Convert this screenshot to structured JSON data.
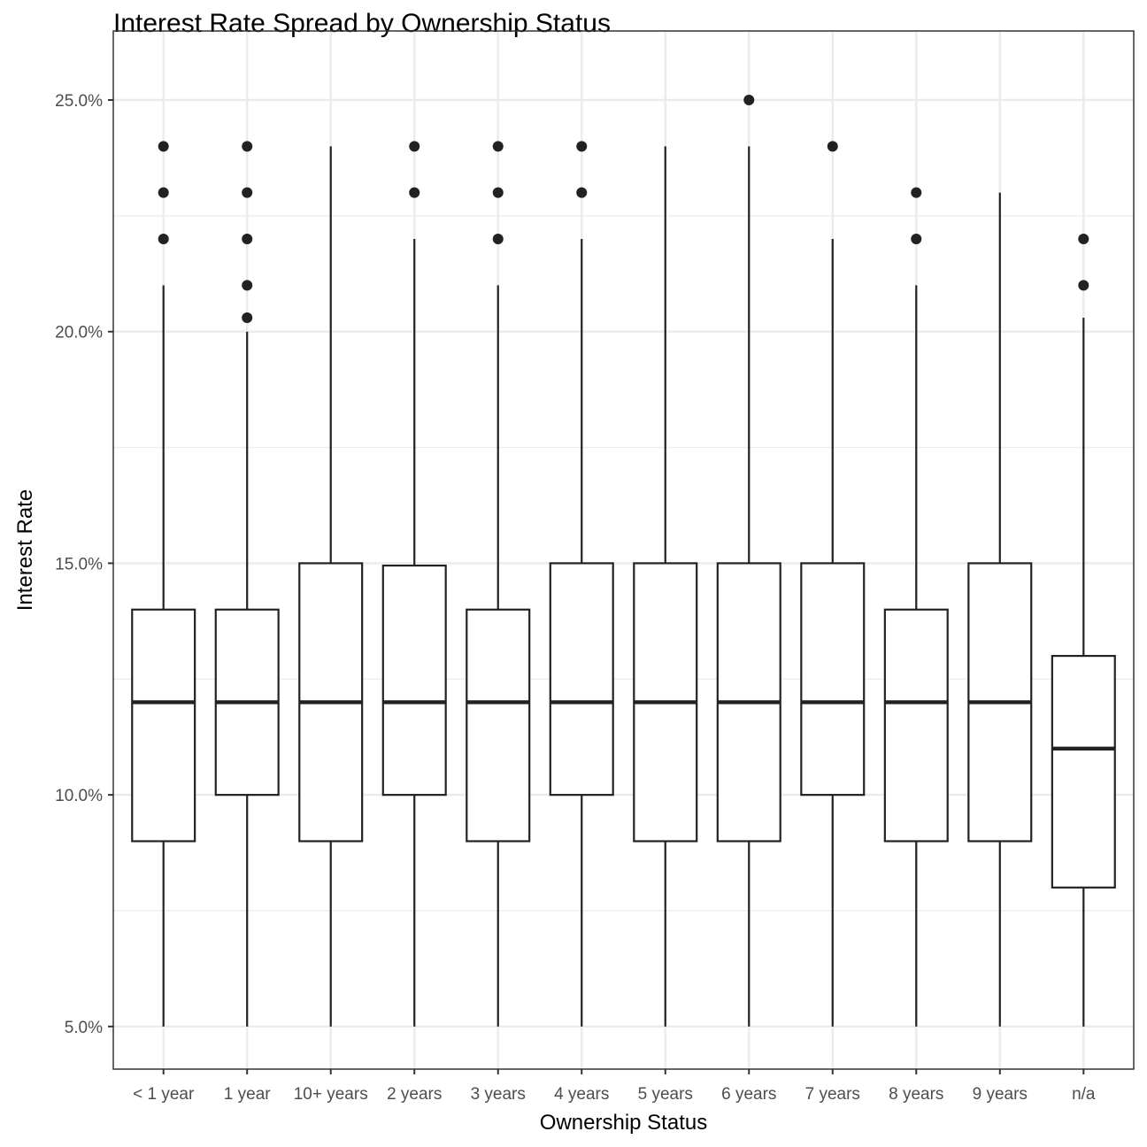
{
  "chart_data": {
    "type": "boxplot",
    "title": "Interest Rate Spread by Ownership Status",
    "xlabel": "Ownership Status",
    "ylabel": "Interest Rate",
    "ylim": [
      4.08,
      26.49
    ],
    "yticks": [
      5,
      10,
      15,
      20,
      25
    ],
    "ytick_labels": [
      "5.0%",
      "10.0%",
      "15.0%",
      "20.0%",
      "25.0%"
    ],
    "grid": true,
    "categories": [
      "< 1 year",
      "1 year",
      "10+ years",
      "2 years",
      "3 years",
      "4 years",
      "5 years",
      "6 years",
      "7 years",
      "8 years",
      "9 years",
      "n/a"
    ],
    "boxes": [
      {
        "min": 5,
        "q1": 9,
        "median": 12,
        "q3": 14,
        "max": 21,
        "outliers": [
          22,
          23,
          24
        ]
      },
      {
        "min": 5,
        "q1": 10,
        "median": 12,
        "q3": 14,
        "max": 20,
        "outliers": [
          20.3,
          21,
          22,
          23,
          24
        ]
      },
      {
        "min": 5,
        "q1": 9,
        "median": 12,
        "q3": 15,
        "max": 24,
        "outliers": []
      },
      {
        "min": 5,
        "q1": 10,
        "median": 12,
        "q3": 14.95,
        "max": 22,
        "outliers": [
          23,
          24
        ]
      },
      {
        "min": 5,
        "q1": 9,
        "median": 12,
        "q3": 14,
        "max": 21,
        "outliers": [
          22,
          23,
          24
        ]
      },
      {
        "min": 5,
        "q1": 10,
        "median": 12,
        "q3": 15,
        "max": 22,
        "outliers": [
          23,
          24
        ]
      },
      {
        "min": 5,
        "q1": 9,
        "median": 12,
        "q3": 15,
        "max": 24,
        "outliers": []
      },
      {
        "min": 5,
        "q1": 9,
        "median": 12,
        "q3": 15,
        "max": 24,
        "outliers": [
          25
        ]
      },
      {
        "min": 5,
        "q1": 10,
        "median": 12,
        "q3": 15,
        "max": 22,
        "outliers": [
          24
        ]
      },
      {
        "min": 5,
        "q1": 9,
        "median": 12,
        "q3": 14,
        "max": 21,
        "outliers": [
          22,
          23
        ]
      },
      {
        "min": 5,
        "q1": 9,
        "median": 12,
        "q3": 15,
        "max": 23,
        "outliers": []
      },
      {
        "min": 5,
        "q1": 8,
        "median": 11,
        "q3": 13,
        "max": 20.3,
        "outliers": [
          21,
          22
        ]
      }
    ],
    "colors": {
      "line": "#222222",
      "grid": "#ebebeb",
      "panel_border": "#333333"
    }
  }
}
